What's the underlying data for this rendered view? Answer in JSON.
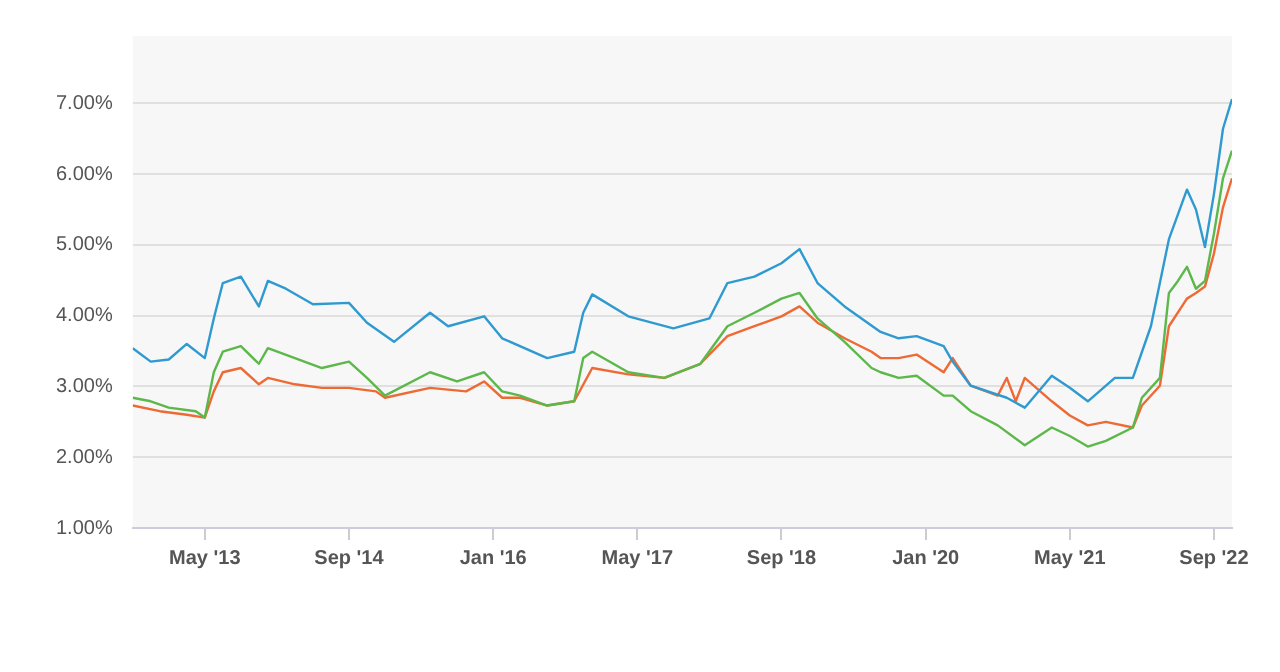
{
  "chart_data": {
    "type": "line",
    "x": [
      "2012-09",
      "2012-11",
      "2013-01",
      "2013-03",
      "2013-05",
      "2013-06",
      "2013-07",
      "2013-09",
      "2013-11",
      "2013-12",
      "2014-02",
      "2014-05",
      "2014-09",
      "2014-11",
      "2015-02",
      "2015-06",
      "2015-08",
      "2015-12",
      "2016-02",
      "2016-07",
      "2016-10",
      "2016-11",
      "2016-12",
      "2017-04",
      "2017-09",
      "2018-01",
      "2018-03",
      "2018-06",
      "2018-09",
      "2018-11",
      "2019-01",
      "2019-04",
      "2019-08",
      "2019-10",
      "2019-12",
      "2020-03",
      "2020-04",
      "2020-06",
      "2020-10",
      "2020-12",
      "2021-03",
      "2021-05",
      "2021-07",
      "2021-10",
      "2021-12",
      "2022-02",
      "2022-04",
      "2022-06",
      "2022-07",
      "2022-08",
      "2022-09",
      "2022-10",
      "2022-11"
    ],
    "series": [
      {
        "color": "#2e9ad0",
        "values": [
          3.54,
          3.35,
          3.38,
          3.6,
          3.4,
          3.96,
          4.46,
          4.55,
          4.13,
          4.49,
          4.38,
          4.16,
          4.18,
          3.9,
          3.63,
          4.04,
          3.85,
          3.99,
          3.68,
          3.4,
          3.49,
          4.04,
          4.3,
          3.99,
          3.82,
          3.96,
          4.46,
          4.55,
          4.74,
          4.94,
          4.46,
          4.13,
          3.77,
          3.68,
          3.71,
          3.57,
          3.35,
          3.01,
          2.84,
          2.7,
          3.15,
          2.98,
          2.79,
          3.12,
          3.12,
          3.85,
          5.08,
          5.78,
          5.5,
          4.97,
          5.72,
          6.64,
          7.06
        ]
      },
      {
        "color": "#5cb84a",
        "x": [
          "2012-09",
          "2012-11",
          "2013-01",
          "2013-04",
          "2013-05",
          "2013-06",
          "2013-07",
          "2013-09",
          "2013-11",
          "2013-12",
          "2014-03",
          "2014-06",
          "2014-09",
          "2014-11",
          "2015-01",
          "2015-06",
          "2015-09",
          "2015-12",
          "2016-02",
          "2016-04",
          "2016-07",
          "2016-10",
          "2016-11",
          "2016-12",
          "2017-04",
          "2017-08",
          "2017-12",
          "2018-03",
          "2018-06",
          "2018-09",
          "2018-11",
          "2019-01",
          "2019-04",
          "2019-07",
          "2019-08",
          "2019-10",
          "2019-12",
          "2020-03",
          "2020-04",
          "2020-06",
          "2020-09",
          "2020-12",
          "2021-03",
          "2021-05",
          "2021-07",
          "2021-09",
          "2021-12",
          "2022-01",
          "2022-03",
          "2022-04",
          "2022-05",
          "2022-06",
          "2022-07",
          "2022-08",
          "2022-09",
          "2022-10",
          "2022-11"
        ],
        "values": [
          2.84,
          2.79,
          2.7,
          2.65,
          2.56,
          3.2,
          3.49,
          3.57,
          3.32,
          3.54,
          3.4,
          3.26,
          3.35,
          3.12,
          2.87,
          3.2,
          3.07,
          3.2,
          2.93,
          2.87,
          2.73,
          2.79,
          3.4,
          3.49,
          3.2,
          3.12,
          3.32,
          3.85,
          4.04,
          4.24,
          4.32,
          3.96,
          3.63,
          3.26,
          3.2,
          3.12,
          3.15,
          2.87,
          2.87,
          2.65,
          2.45,
          2.17,
          2.42,
          2.3,
          2.15,
          2.23,
          2.42,
          2.84,
          3.12,
          4.32,
          4.49,
          4.69,
          4.38,
          4.49,
          5.16,
          5.94,
          6.33
        ]
      },
      {
        "color": "#ee6a35",
        "x": [
          "2012-09",
          "2012-12",
          "2013-03",
          "2013-05",
          "2013-06",
          "2013-07",
          "2013-09",
          "2013-11",
          "2013-12",
          "2014-03",
          "2014-06",
          "2014-09",
          "2014-12",
          "2015-01",
          "2015-06",
          "2015-10",
          "2015-12",
          "2016-02",
          "2016-04",
          "2016-07",
          "2016-10",
          "2016-12",
          "2017-04",
          "2017-08",
          "2017-12",
          "2018-03",
          "2018-06",
          "2018-09",
          "2018-11",
          "2019-01",
          "2019-04",
          "2019-07",
          "2019-08",
          "2019-10",
          "2019-12",
          "2020-03",
          "2020-04",
          "2020-06",
          "2020-09",
          "2020-10",
          "2020-11",
          "2020-12",
          "2021-03",
          "2021-05",
          "2021-07",
          "2021-09",
          "2021-12",
          "2022-01",
          "2022-03",
          "2022-04",
          "2022-06",
          "2022-07",
          "2022-08",
          "2022-09",
          "2022-10",
          "2022-11"
        ],
        "values": [
          2.73,
          2.65,
          2.6,
          2.56,
          2.93,
          3.2,
          3.26,
          3.03,
          3.12,
          3.03,
          2.98,
          2.98,
          2.93,
          2.84,
          2.98,
          2.93,
          3.07,
          2.84,
          2.84,
          2.73,
          2.79,
          3.26,
          3.17,
          3.12,
          3.32,
          3.71,
          3.85,
          3.99,
          4.13,
          3.9,
          3.68,
          3.49,
          3.4,
          3.4,
          3.45,
          3.2,
          3.4,
          3.01,
          2.87,
          3.12,
          2.79,
          3.12,
          2.79,
          2.59,
          2.45,
          2.5,
          2.42,
          2.73,
          3.01,
          3.85,
          4.24,
          4.32,
          4.41,
          4.88,
          5.53,
          5.94
        ]
      }
    ],
    "xlim": [
      "2012-09",
      "2022-11"
    ],
    "xticks": [
      {
        "value": "2013-05",
        "label": "May '13"
      },
      {
        "value": "2014-09",
        "label": "Sep '14"
      },
      {
        "value": "2016-01",
        "label": "Jan '16"
      },
      {
        "value": "2017-05",
        "label": "May '17"
      },
      {
        "value": "2018-09",
        "label": "Sep '18"
      },
      {
        "value": "2020-01",
        "label": "Jan '20"
      },
      {
        "value": "2021-05",
        "label": "May '21"
      },
      {
        "value": "2022-09",
        "label": "Sep '22"
      }
    ],
    "ylim": [
      1,
      7.95
    ],
    "yticks": [
      {
        "value": 1,
        "label": "1.00%"
      },
      {
        "value": 2,
        "label": "2.00%"
      },
      {
        "value": 3,
        "label": "3.00%"
      },
      {
        "value": 4,
        "label": "4.00%"
      },
      {
        "value": 5,
        "label": "5.00%"
      },
      {
        "value": 6,
        "label": "6.00%"
      },
      {
        "value": 7,
        "label": "7.00%"
      }
    ],
    "grid": "y",
    "legend": false,
    "marker": "none",
    "line_style": "solid"
  }
}
